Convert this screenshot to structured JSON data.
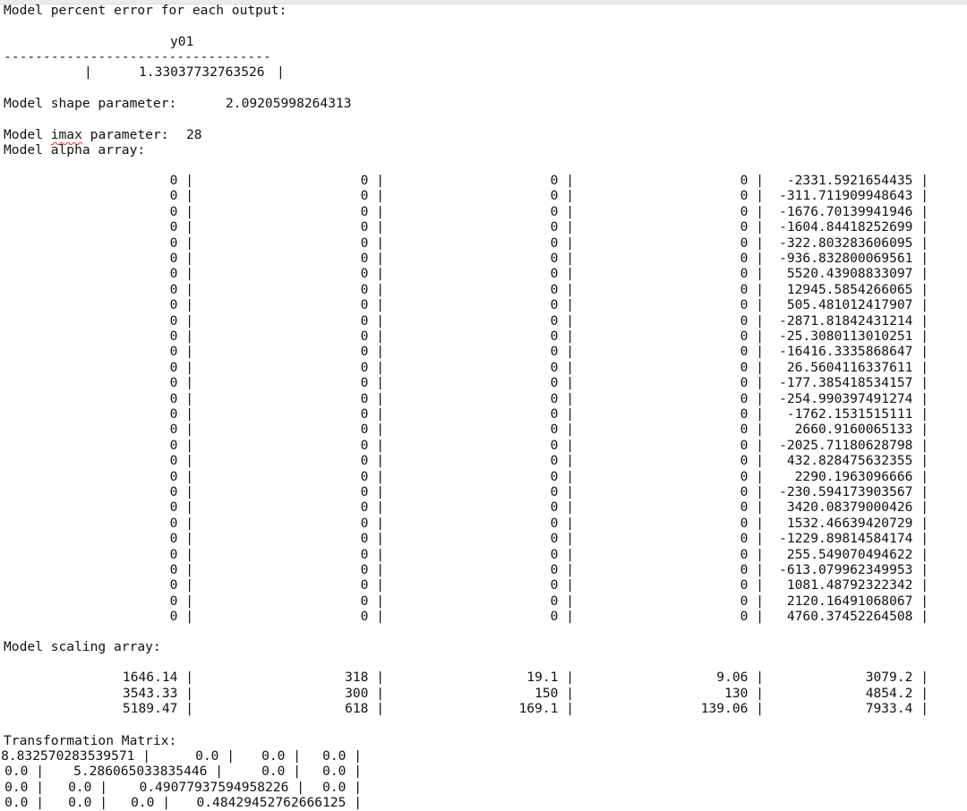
{
  "error_section": {
    "title": "Model percent error for each output:",
    "column_header": "y01",
    "separator": "----------------------------------",
    "row_prefix": "|",
    "value": "1.33037732763526",
    "row_suffix": "|"
  },
  "shape": {
    "label": "Model shape parameter:",
    "value": "2.09205998264313"
  },
  "imax": {
    "label_pre": "Model ",
    "label_word": "imax",
    "label_post": " parameter:",
    "value": "28"
  },
  "alpha": {
    "label": "Model alpha array:",
    "rows": [
      [
        "0",
        "0",
        "0",
        "0",
        "-2331.5921654435"
      ],
      [
        "0",
        "0",
        "0",
        "0",
        "-311.711909948643"
      ],
      [
        "0",
        "0",
        "0",
        "0",
        "-1676.70139941946"
      ],
      [
        "0",
        "0",
        "0",
        "0",
        "-1604.84418252699"
      ],
      [
        "0",
        "0",
        "0",
        "0",
        "-322.803283606095"
      ],
      [
        "0",
        "0",
        "0",
        "0",
        "-936.832800069561"
      ],
      [
        "0",
        "0",
        "0",
        "0",
        "5520.43908833097"
      ],
      [
        "0",
        "0",
        "0",
        "0",
        "12945.5854266065"
      ],
      [
        "0",
        "0",
        "0",
        "0",
        "505.481012417907"
      ],
      [
        "0",
        "0",
        "0",
        "0",
        "-2871.81842431214"
      ],
      [
        "0",
        "0",
        "0",
        "0",
        "-25.3080113010251"
      ],
      [
        "0",
        "0",
        "0",
        "0",
        "-16416.3335868647"
      ],
      [
        "0",
        "0",
        "0",
        "0",
        "26.5604116337611"
      ],
      [
        "0",
        "0",
        "0",
        "0",
        "-177.385418534157"
      ],
      [
        "0",
        "0",
        "0",
        "0",
        "-254.990397491274"
      ],
      [
        "0",
        "0",
        "0",
        "0",
        "-1762.1531515111"
      ],
      [
        "0",
        "0",
        "0",
        "0",
        "2660.9160065133"
      ],
      [
        "0",
        "0",
        "0",
        "0",
        "-2025.71180628798"
      ],
      [
        "0",
        "0",
        "0",
        "0",
        "432.828475632355"
      ],
      [
        "0",
        "0",
        "0",
        "0",
        "2290.1963096666"
      ],
      [
        "0",
        "0",
        "0",
        "0",
        "-230.594173903567"
      ],
      [
        "0",
        "0",
        "0",
        "0",
        "3420.08379000426"
      ],
      [
        "0",
        "0",
        "0",
        "0",
        "1532.46639420729"
      ],
      [
        "0",
        "0",
        "0",
        "0",
        "-1229.89814584174"
      ],
      [
        "0",
        "0",
        "0",
        "0",
        "255.549070494622"
      ],
      [
        "0",
        "0",
        "0",
        "0",
        "-613.079962349953"
      ],
      [
        "0",
        "0",
        "0",
        "0",
        "1081.48792322342"
      ],
      [
        "0",
        "0",
        "0",
        "0",
        "2120.16491068067"
      ],
      [
        "0",
        "0",
        "0",
        "0",
        "4760.37452264508"
      ]
    ]
  },
  "scaling": {
    "label": "Model scaling array:",
    "rows": [
      [
        "1646.14",
        "318",
        "19.1",
        "9.06",
        "3079.2"
      ],
      [
        "3543.33",
        "300",
        "150",
        "130",
        "4854.2"
      ],
      [
        "5189.47",
        "618",
        "169.1",
        "139.06",
        "7933.4"
      ]
    ]
  },
  "transformation": {
    "label": "Transformation Matrix:",
    "rows": [
      [
        "8.832570283539571",
        "0.0",
        "0.0",
        "0.0"
      ],
      [
        "0.0",
        "5.286065033835446",
        "0.0",
        "0.0"
      ],
      [
        "0.0",
        "0.0",
        "0.49077937594958226",
        "0.0"
      ],
      [
        "0.0",
        "0.0",
        "0.0",
        "0.48429452762666125"
      ]
    ]
  }
}
